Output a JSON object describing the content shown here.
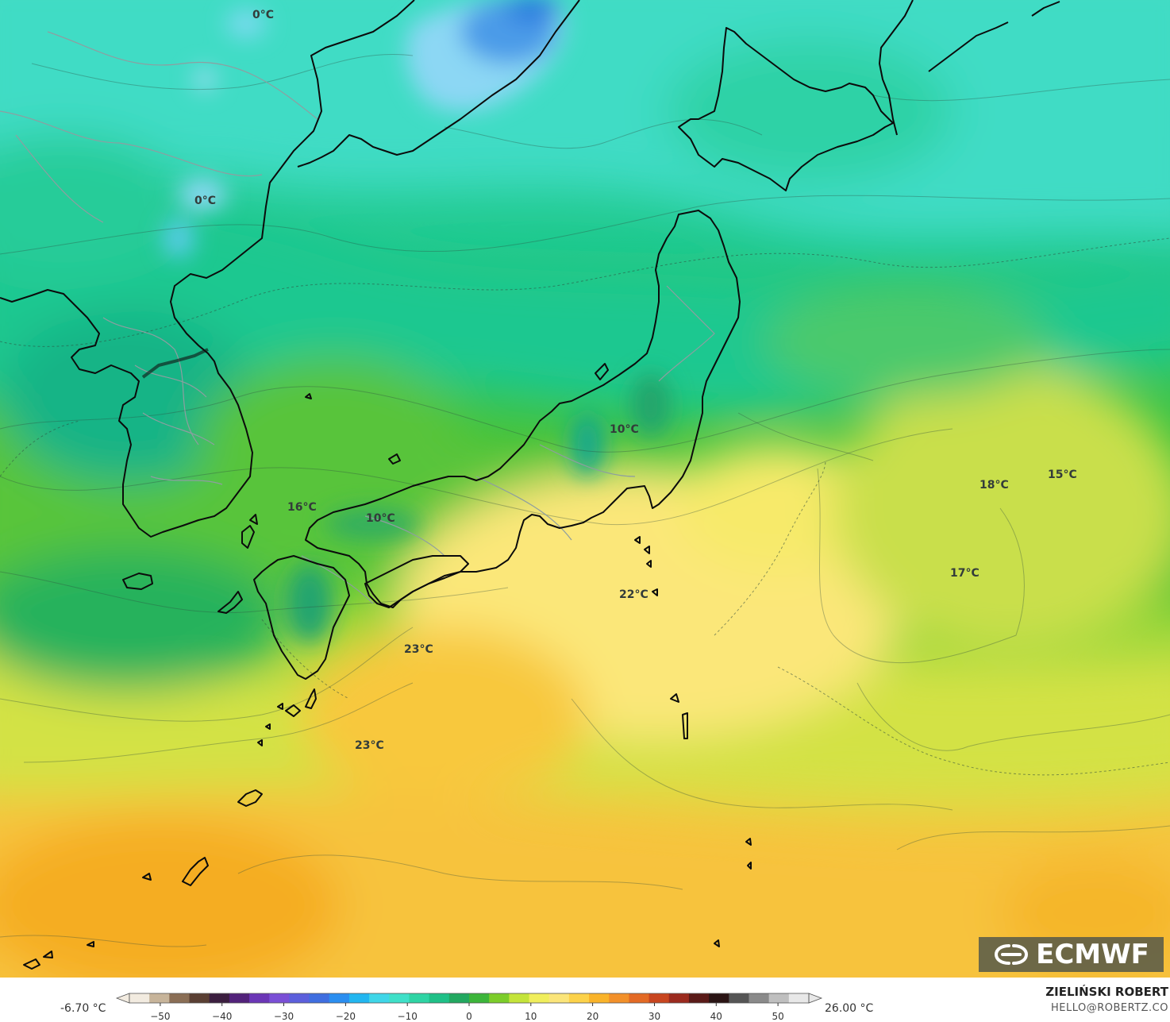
{
  "map": {
    "labels": [
      {
        "text": "0°C"
      },
      {
        "text": "0°C"
      },
      {
        "text": "10°C"
      },
      {
        "text": "10°C"
      },
      {
        "text": "16°C"
      },
      {
        "text": "22°C"
      },
      {
        "text": "23°C"
      },
      {
        "text": "23°C"
      },
      {
        "text": "18°C"
      },
      {
        "text": "15°C"
      },
      {
        "text": "17°C"
      }
    ]
  },
  "logo": {
    "text": "ECMWF",
    "icon": "ecmwf-logo-icon"
  },
  "colorbar": {
    "min_label": "-6.70 °C",
    "max_label": "26.00 °C",
    "ticks": [
      "−50",
      "−40",
      "−30",
      "−20",
      "−10",
      "0",
      "10",
      "20",
      "30",
      "40",
      "50"
    ],
    "range": [
      -55,
      55
    ],
    "colors": [
      "#f2ebe0",
      "#c7b49a",
      "#8a6e55",
      "#5a3f33",
      "#3b1e3f",
      "#52227a",
      "#6b36b6",
      "#7a4fd6",
      "#5c5fdc",
      "#3f6ee0",
      "#2b8ef0",
      "#22b6f0",
      "#3fd6e8",
      "#3fe0c8",
      "#2ed4a4",
      "#1fc087",
      "#22a860",
      "#3cb53a",
      "#7ccd2a",
      "#c4e43a",
      "#f0ee5c",
      "#fbe57a",
      "#fcd24a",
      "#f9b32a",
      "#f2902a",
      "#e36a25",
      "#c8451f",
      "#9b2a1e",
      "#5a1a18",
      "#2a1414",
      "#555555",
      "#8a8a8a",
      "#bfbfbf",
      "#e8e8e8"
    ]
  },
  "author": {
    "name": "ZIELIŃSKI ROBERT",
    "email": "HELLO@ROBERTZ.CO"
  }
}
